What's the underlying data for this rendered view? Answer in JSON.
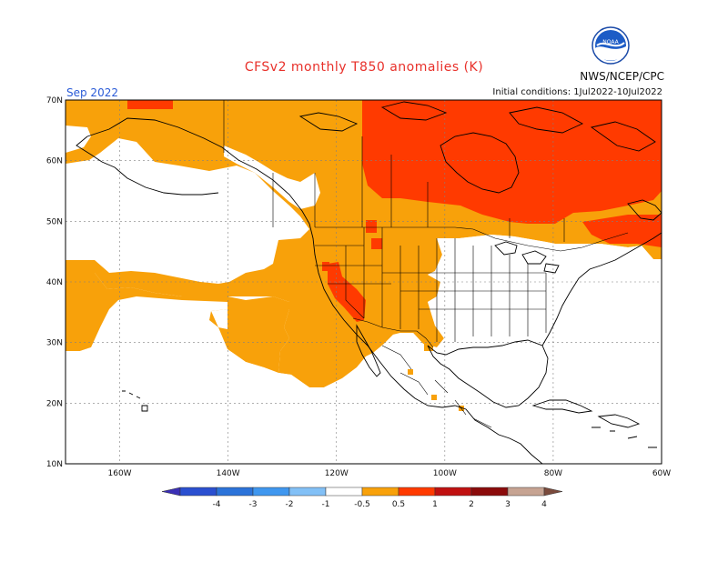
{
  "title": "CFSv2 monthly T850 anomalies (K)",
  "agency": "NWS/NCEP/CPC",
  "month": "Sep 2022",
  "initial_conditions": "Initial conditions: 1Jul2022-10Jul2022",
  "logo": {
    "text": "NOAA"
  },
  "map": {
    "lon_ticks": [
      "160W",
      "140W",
      "120W",
      "100W",
      "80W",
      "60W"
    ],
    "lat_ticks": [
      "70N",
      "60N",
      "50N",
      "40N",
      "30N",
      "20N",
      "10N"
    ],
    "lon_range": [
      -170,
      -60
    ],
    "lat_range": [
      10,
      70
    ]
  },
  "legend": {
    "colors": [
      "#3b2fb5",
      "#2a4fd0",
      "#2b73d9",
      "#3f97ef",
      "#82c0f6",
      "#ffffff",
      "#f8a10a",
      "#ff3a00",
      "#c01010",
      "#8b0b0b",
      "#c6a392",
      "#7a4a3c"
    ],
    "labels": [
      "-4",
      "-3",
      "-2",
      "-1",
      "-0.5",
      "0.5",
      "1",
      "2",
      "3",
      "4"
    ]
  },
  "colors": {
    "anom_05_1": "#f8a10a",
    "anom_1_2": "#ff3a00",
    "background": "#ffffff"
  }
}
